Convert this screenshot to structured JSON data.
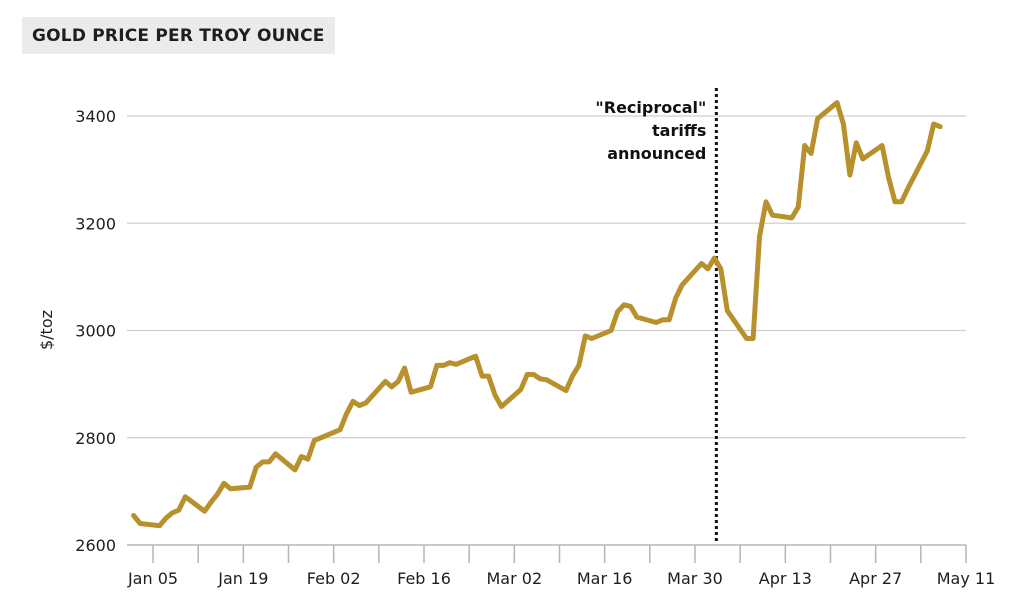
{
  "header": {
    "title": "GOLD PRICE PER TROY OUNCE"
  },
  "colors": {
    "line": "#b8902c",
    "grid": "#cfcfcf",
    "axis": "#b5b5b5",
    "annotation_line": "#111111",
    "title_bg": "#ebebeb"
  },
  "annotation": {
    "lines": [
      "\"Reciprocal\"",
      "tariffs",
      "announced"
    ],
    "date": "Apr 02"
  },
  "chart_data": {
    "type": "line",
    "title": "GOLD PRICE PER TROY OUNCE",
    "xlabel": "",
    "ylabel": "$/toz",
    "ylim": [
      2600,
      3450
    ],
    "yticks": [
      2600,
      2800,
      3000,
      3200,
      3400
    ],
    "xticks": [
      "Jan 05",
      "Jan 19",
      "Feb 02",
      "Feb 16",
      "Mar 02",
      "Mar 16",
      "Mar 30",
      "Apr 13",
      "Apr 27",
      "May 11"
    ],
    "grid": true,
    "legend": "none",
    "annotations": [
      {
        "x": "Apr 02",
        "text": "\"Reciprocal\" tariffs announced",
        "style": "dotted vertical line"
      }
    ],
    "series": [
      {
        "name": "Gold price ($/toz)",
        "x": [
          "Jan 02",
          "Jan 03",
          "Jan 06",
          "Jan 07",
          "Jan 08",
          "Jan 09",
          "Jan 10",
          "Jan 13",
          "Jan 14",
          "Jan 15",
          "Jan 16",
          "Jan 17",
          "Jan 20",
          "Jan 21",
          "Jan 22",
          "Jan 23",
          "Jan 24",
          "Jan 27",
          "Jan 28",
          "Jan 29",
          "Jan 30",
          "Jan 31",
          "Feb 03",
          "Feb 04",
          "Feb 05",
          "Feb 06",
          "Feb 07",
          "Feb 10",
          "Feb 11",
          "Feb 12",
          "Feb 13",
          "Feb 14",
          "Feb 17",
          "Feb 18",
          "Feb 19",
          "Feb 20",
          "Feb 21",
          "Feb 24",
          "Feb 25",
          "Feb 26",
          "Feb 27",
          "Feb 28",
          "Mar 03",
          "Mar 04",
          "Mar 05",
          "Mar 06",
          "Mar 07",
          "Mar 10",
          "Mar 11",
          "Mar 12",
          "Mar 13",
          "Mar 14",
          "Mar 17",
          "Mar 18",
          "Mar 19",
          "Mar 20",
          "Mar 21",
          "Mar 24",
          "Mar 25",
          "Mar 26",
          "Mar 27",
          "Mar 28",
          "Mar 31",
          "Apr 01",
          "Apr 02",
          "Apr 03",
          "Apr 04",
          "Apr 07",
          "Apr 08",
          "Apr 09",
          "Apr 10",
          "Apr 11",
          "Apr 14",
          "Apr 15",
          "Apr 16",
          "Apr 17",
          "Apr 18",
          "Apr 21",
          "Apr 22",
          "Apr 23",
          "Apr 24",
          "Apr 25",
          "Apr 28",
          "Apr 29",
          "Apr 30",
          "May 01",
          "May 02",
          "May 05",
          "May 06",
          "May 07"
        ],
        "values": [
          2655,
          2640,
          2636,
          2650,
          2660,
          2665,
          2690,
          2663,
          2680,
          2695,
          2715,
          2705,
          2708,
          2745,
          2755,
          2755,
          2770,
          2740,
          2765,
          2760,
          2795,
          2800,
          2815,
          2845,
          2868,
          2860,
          2865,
          2905,
          2895,
          2905,
          2930,
          2885,
          2895,
          2935,
          2935,
          2940,
          2937,
          2952,
          2915,
          2915,
          2880,
          2858,
          2890,
          2918,
          2918,
          2910,
          2908,
          2888,
          2915,
          2935,
          2990,
          2985,
          3000,
          3035,
          3048,
          3045,
          3025,
          3015,
          3020,
          3020,
          3060,
          3085,
          3125,
          3115,
          3135,
          3115,
          3037,
          2985,
          2985,
          3175,
          3240,
          3215,
          3210,
          3230,
          3345,
          3330,
          3395,
          3425,
          3385,
          3290,
          3350,
          3320,
          3345,
          3285,
          3240,
          3240,
          3265,
          3335,
          3385,
          3380
        ]
      }
    ]
  }
}
